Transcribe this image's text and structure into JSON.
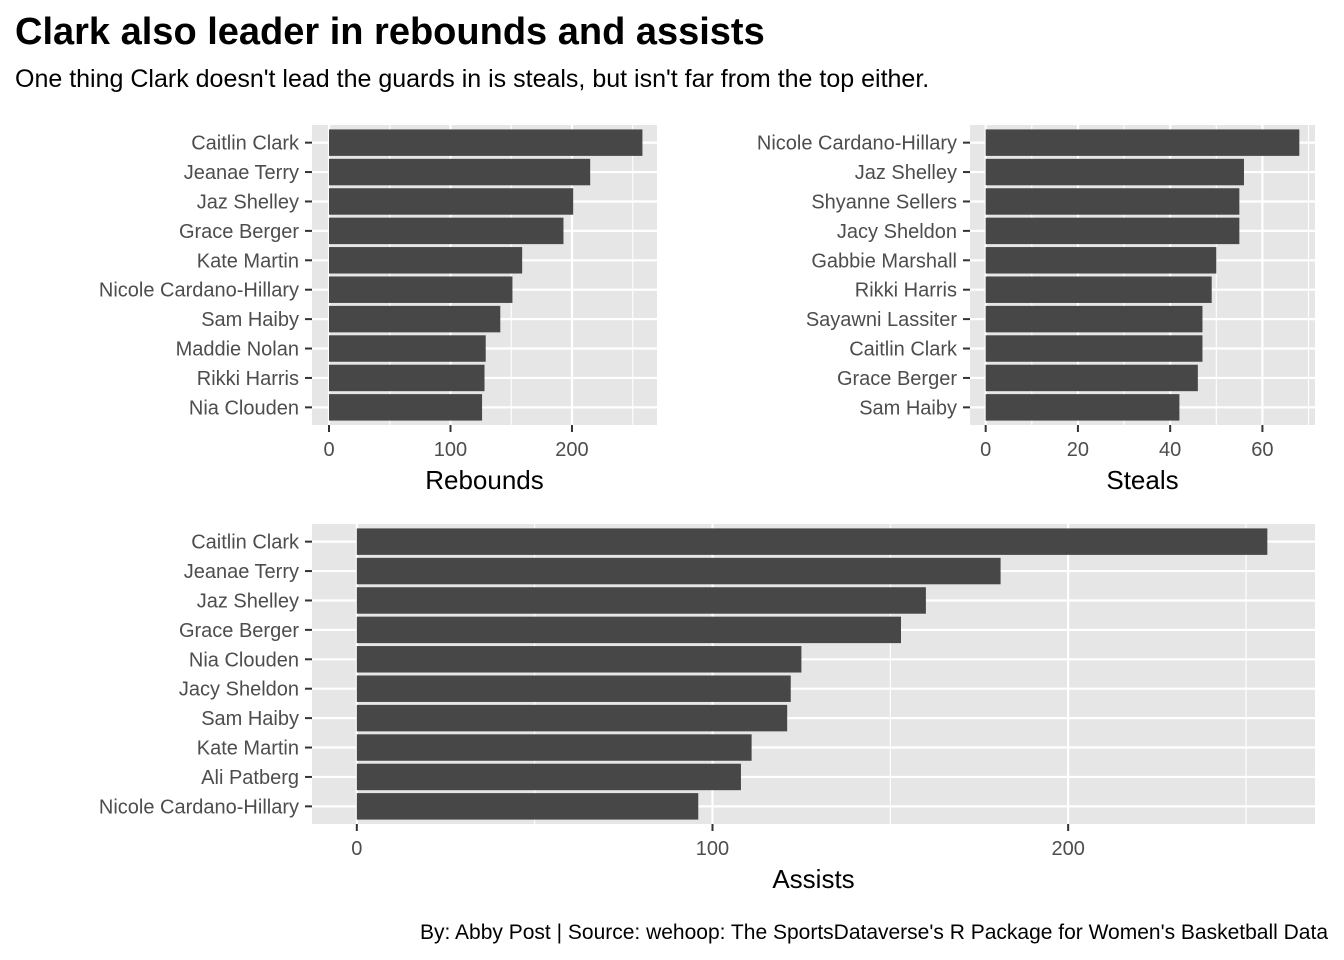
{
  "title": "Clark also leader in rebounds and assists",
  "subtitle": "One thing Clark doesn't lead the guards in is steals, but isn't far from the top either.",
  "caption": "By: Abby Post  | Source: wehoop: The SportsDataverse's R Package for Women's Basketball Data",
  "colors": {
    "bar": "#474747",
    "panel": "#e6e6e6",
    "grid": "#ffffff",
    "axis_text": "#4d4d4d"
  },
  "chart_data": [
    {
      "type": "bar",
      "orientation": "horizontal",
      "categories": [
        "Caitlin Clark",
        "Jeanae Terry",
        "Jaz Shelley",
        "Grace Berger",
        "Kate Martin",
        "Nicole Cardano-Hillary",
        "Sam Haiby",
        "Maddie Nolan",
        "Rikki Harris",
        "Nia Clouden"
      ],
      "values": [
        258,
        215,
        201,
        193,
        159,
        151,
        141,
        129,
        128,
        126
      ],
      "xlabel": "Rebounds",
      "ylabel": "",
      "xlim": [
        -14,
        270
      ],
      "xticks": [
        0,
        100,
        200
      ],
      "grid": true
    },
    {
      "type": "bar",
      "orientation": "horizontal",
      "categories": [
        "Nicole Cardano-Hillary",
        "Jaz Shelley",
        "Shyanne Sellers",
        "Jacy Sheldon",
        "Gabbie Marshall",
        "Rikki Harris",
        "Sayawni Lassiter",
        "Caitlin Clark",
        "Grace Berger",
        "Sam Haiby"
      ],
      "values": [
        68,
        56,
        55,
        55,
        50,
        49,
        47,
        47,
        46,
        42
      ],
      "xlabel": "Steals",
      "ylabel": "",
      "xlim": [
        -3.4,
        71.4
      ],
      "xticks": [
        0,
        20,
        40,
        60
      ],
      "grid": true
    },
    {
      "type": "bar",
      "orientation": "horizontal",
      "categories": [
        "Caitlin Clark",
        "Jeanae Terry",
        "Jaz Shelley",
        "Grace Berger",
        "Nia Clouden",
        "Jacy Sheldon",
        "Sam Haiby",
        "Kate Martin",
        "Ali Patberg",
        "Nicole Cardano-Hillary"
      ],
      "values": [
        256,
        181,
        160,
        153,
        125,
        122,
        121,
        111,
        108,
        96
      ],
      "xlabel": "Assists",
      "ylabel": "",
      "xlim": [
        -12.6,
        269.4
      ],
      "xticks": [
        0,
        100,
        200
      ],
      "grid": true
    }
  ]
}
